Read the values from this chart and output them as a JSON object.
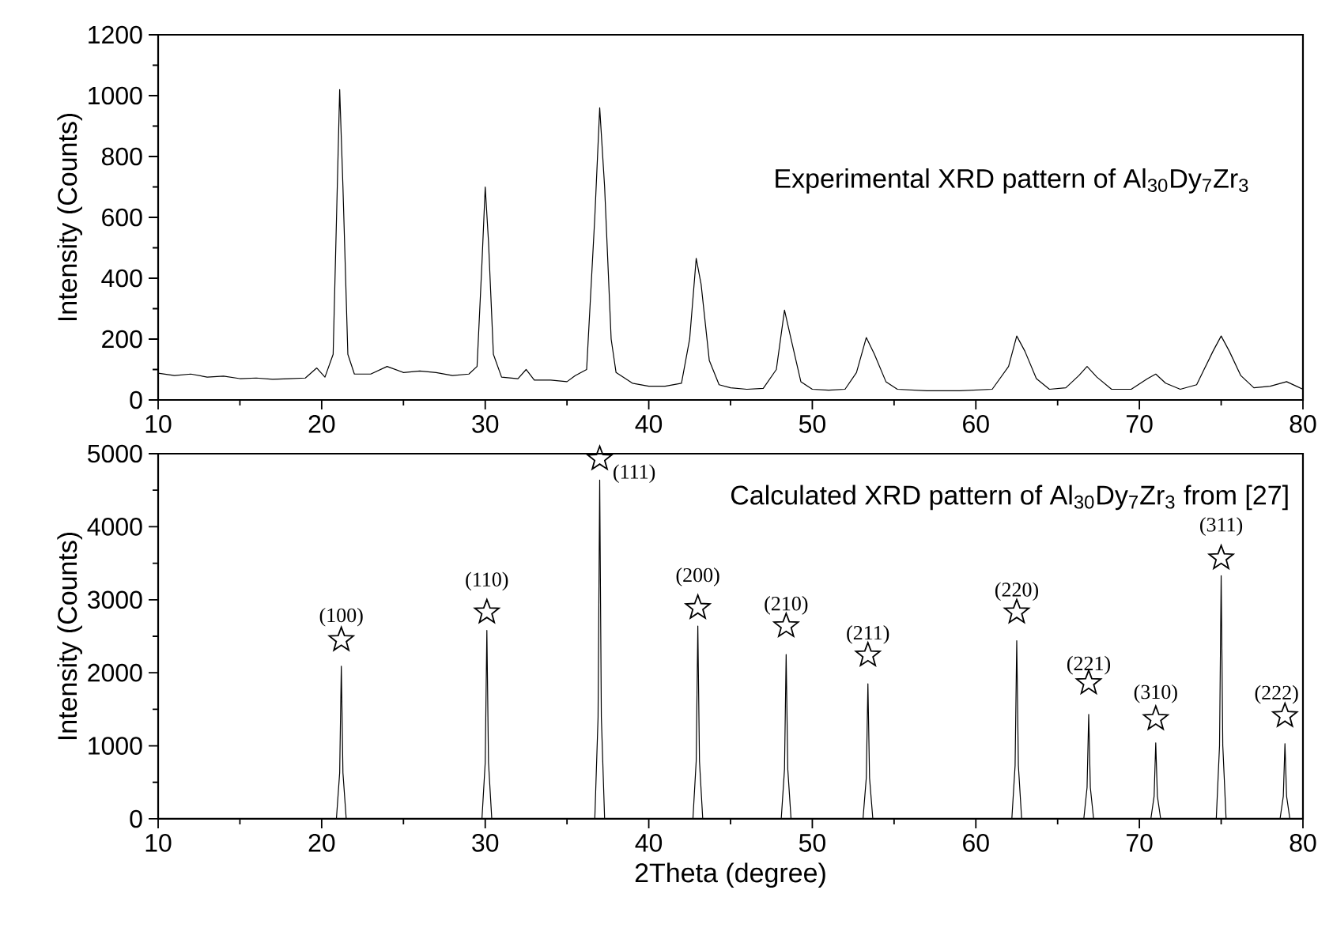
{
  "chart_data": [
    {
      "type": "line",
      "color": "#000000",
      "x": [
        10,
        11,
        12,
        13,
        14,
        15,
        16,
        17,
        18,
        19,
        19.7,
        20.2,
        20.7,
        21.0,
        21.1,
        21.3,
        21.6,
        22,
        23,
        24,
        25,
        26,
        27,
        28,
        29,
        29.5,
        29.8,
        30.0,
        30.2,
        30.5,
        31,
        32,
        32.5,
        33,
        34,
        35,
        35.5,
        36.2,
        36.7,
        37.0,
        37.3,
        37.7,
        38,
        39,
        40,
        41,
        42,
        42.5,
        42.9,
        43.2,
        43.7,
        44.3,
        45,
        46,
        47,
        47.8,
        48.3,
        48.7,
        49.3,
        50,
        51,
        52,
        52.7,
        53.3,
        53.8,
        54.5,
        55.2,
        57,
        59,
        61,
        62,
        62.5,
        63,
        63.7,
        64.5,
        65.5,
        66.3,
        66.8,
        67.4,
        68.3,
        69.5,
        70.5,
        71,
        71.6,
        72.5,
        73.5,
        74.5,
        75,
        75.5,
        76.2,
        77,
        78,
        79,
        79.6,
        80
      ],
      "values": [
        88,
        80,
        85,
        75,
        78,
        70,
        72,
        68,
        70,
        72,
        105,
        75,
        150,
        800,
        1020,
        700,
        150,
        85,
        85,
        110,
        90,
        95,
        90,
        80,
        85,
        110,
        450,
        700,
        520,
        150,
        75,
        70,
        100,
        65,
        65,
        60,
        80,
        100,
        600,
        960,
        700,
        200,
        90,
        55,
        45,
        45,
        55,
        200,
        465,
        380,
        130,
        50,
        40,
        35,
        38,
        100,
        295,
        200,
        60,
        35,
        32,
        35,
        90,
        205,
        150,
        60,
        35,
        30,
        30,
        35,
        110,
        210,
        160,
        70,
        35,
        40,
        80,
        110,
        75,
        35,
        35,
        70,
        85,
        55,
        35,
        50,
        160,
        210,
        160,
        80,
        40,
        45,
        60,
        45,
        35
      ],
      "xlim": [
        10,
        80
      ],
      "ylim": [
        0,
        1200
      ],
      "xticks": [
        10,
        20,
        30,
        40,
        50,
        60,
        70,
        80
      ],
      "yticks": [
        0,
        200,
        400,
        600,
        800,
        1000,
        1200
      ],
      "ylabel": "Intensity (Counts)",
      "annotations": [
        "Experimental XRD pattern of Al$_{30}$Dy$_{7}$Zr$_{3}$"
      ]
    },
    {
      "type": "line",
      "xlim": [
        10,
        80
      ],
      "ylim": [
        0,
        5000
      ],
      "xticks": [
        10,
        20,
        30,
        40,
        50,
        60,
        70,
        80
      ],
      "yticks": [
        0,
        1000,
        2000,
        3000,
        4000,
        5000
      ],
      "xlabel": "2Theta (degree)",
      "ylabel": "Intensity (Counts)",
      "series": [
        {
          "type": "line",
          "color": "#000000",
          "x": [
            10,
            20.9,
            21.1,
            21.2,
            21.3,
            21.5,
            29.8,
            30.0,
            30.1,
            30.2,
            30.4,
            36.7,
            36.9,
            37.0,
            37.1,
            37.3,
            42.7,
            42.9,
            43.0,
            43.1,
            43.3,
            48.1,
            48.3,
            48.4,
            48.5,
            48.7,
            53.1,
            53.3,
            53.4,
            53.5,
            53.7,
            62.2,
            62.4,
            62.5,
            62.6,
            62.8,
            66.6,
            66.8,
            66.9,
            67.0,
            67.2,
            70.7,
            70.9,
            71.0,
            71.1,
            71.3,
            74.7,
            74.9,
            75.0,
            75.1,
            75.3,
            78.6,
            78.8,
            78.9,
            79.0,
            79.2,
            80
          ],
          "values": [
            0,
            0,
            630,
            2090,
            630,
            0,
            0,
            770,
            2580,
            770,
            0,
            0,
            1390,
            4640,
            1390,
            0,
            0,
            790,
            2640,
            790,
            0,
            0,
            680,
            2250,
            680,
            0,
            0,
            560,
            1850,
            560,
            0,
            0,
            730,
            2440,
            730,
            0,
            0,
            430,
            1430,
            430,
            0,
            0,
            310,
            1040,
            310,
            0,
            0,
            1000,
            3330,
            1000,
            0,
            0,
            310,
            1030,
            310,
            0,
            0
          ]
        },
        {
          "type": "scatter",
          "marker": "star",
          "color": "#000000",
          "x": [
            21.2,
            30.1,
            37.0,
            43.0,
            48.4,
            53.4,
            62.5,
            66.9,
            71.0,
            75.0,
            78.9
          ],
          "values": [
            2450,
            2830,
            4930,
            2890,
            2640,
            2240,
            2830,
            1860,
            1370,
            3570,
            1410
          ]
        }
      ],
      "annotations": [
        "Calculated XRD pattern of Al$_{30}$Dy$_{7}$Zr$_{3}$ from [27]",
        {
          "text": "(100)",
          "x": 21.2,
          "y": 2090
        },
        {
          "text": "(110)",
          "x": 30.1,
          "y": 2580
        },
        {
          "text": "(111)",
          "x": 37.0,
          "y": 4640
        },
        {
          "text": "(200)",
          "x": 43.0,
          "y": 2640
        },
        {
          "text": "(210)",
          "x": 48.4,
          "y": 2250
        },
        {
          "text": "(211)",
          "x": 53.4,
          "y": 1850
        },
        {
          "text": "(220)",
          "x": 62.5,
          "y": 2440
        },
        {
          "text": "(221)",
          "x": 66.9,
          "y": 1430
        },
        {
          "text": "(310)",
          "x": 71.0,
          "y": 1040
        },
        {
          "text": "(311)",
          "x": 75.0,
          "y": 3330
        },
        {
          "text": "(222)",
          "x": 78.9,
          "y": 1030
        }
      ]
    }
  ]
}
